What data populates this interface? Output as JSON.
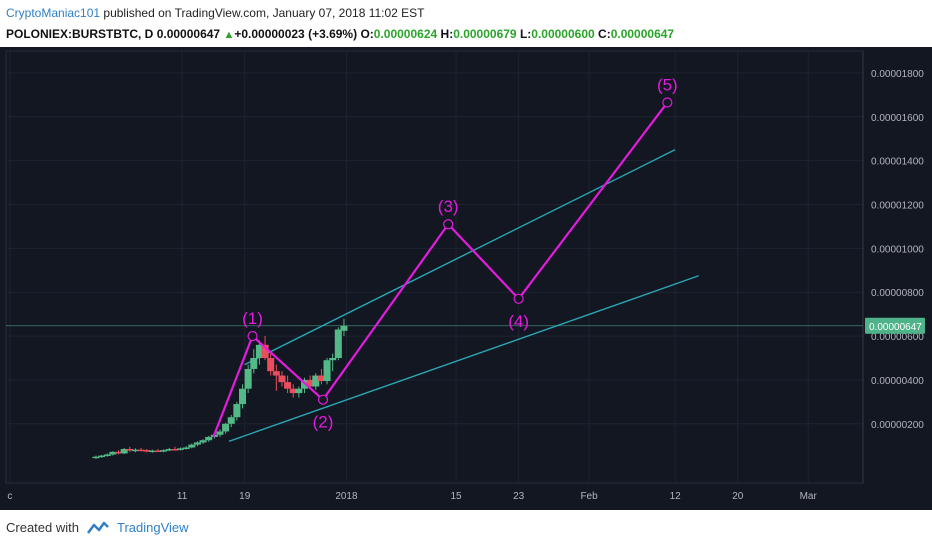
{
  "header": {
    "author": "CryptoManiac101",
    "published": "published on TradingView.com, January 07, 2018 11:02 EST",
    "symbol": "POLONIEX:BURSTBTC, D",
    "last": "0.00000647",
    "change": "+0.00000023 (+3.69%)",
    "o_label": "O:",
    "o_val": "0.00000624",
    "h_label": "H:",
    "h_val": "0.00000679",
    "l_label": "L:",
    "l_val": "0.00000600",
    "c_label": "C:",
    "c_val": "0.00000647"
  },
  "footer": {
    "created_with": "Created with",
    "brand": "TradingView"
  },
  "colors": {
    "background": "#131722",
    "wave": "#e21bdd",
    "channel": "#2aa6b3",
    "bull": "#53b987",
    "bear": "#eb4d5c",
    "price_badge": "#4fb389"
  },
  "chart_data": {
    "type": "candlestick",
    "x_ticks": [
      {
        "label": "c",
        "day": -11
      },
      {
        "label": "11",
        "day": 11
      },
      {
        "label": "19",
        "day": 19
      },
      {
        "label": "2018",
        "day": 32
      },
      {
        "label": "15",
        "day": 46
      },
      {
        "label": "23",
        "day": 54
      },
      {
        "label": "Feb",
        "day": 63
      },
      {
        "label": "12",
        "day": 74
      },
      {
        "label": "20",
        "day": 82
      },
      {
        "label": "Mar",
        "day": 91
      }
    ],
    "y_ticks": [
      {
        "label": "0.00000200",
        "value": 200
      },
      {
        "label": "0.00000400",
        "value": 400
      },
      {
        "label": "0.00000600",
        "value": 600
      },
      {
        "label": "0.00000800",
        "value": 800
      },
      {
        "label": "0.00001000",
        "value": 1000
      },
      {
        "label": "0.00001200",
        "value": 1200
      },
      {
        "label": "0.00001400",
        "value": 1400
      },
      {
        "label": "0.00001600",
        "value": 1600
      },
      {
        "label": "0.00001800",
        "value": 1800
      }
    ],
    "y_unit_note": "values in 1e-8 BTC",
    "current_price": {
      "label": "0.00000647",
      "value": 647
    },
    "candles": [
      {
        "o": 45,
        "h": 55,
        "l": 40,
        "c": 50
      },
      {
        "o": 50,
        "h": 58,
        "l": 45,
        "c": 55
      },
      {
        "o": 55,
        "h": 65,
        "l": 50,
        "c": 60
      },
      {
        "o": 60,
        "h": 75,
        "l": 55,
        "c": 72
      },
      {
        "o": 72,
        "h": 80,
        "l": 60,
        "c": 65
      },
      {
        "o": 65,
        "h": 90,
        "l": 62,
        "c": 85
      },
      {
        "o": 85,
        "h": 95,
        "l": 70,
        "c": 78
      },
      {
        "o": 78,
        "h": 88,
        "l": 70,
        "c": 82
      },
      {
        "o": 82,
        "h": 90,
        "l": 75,
        "c": 80
      },
      {
        "o": 80,
        "h": 85,
        "l": 70,
        "c": 74
      },
      {
        "o": 74,
        "h": 82,
        "l": 68,
        "c": 78
      },
      {
        "o": 78,
        "h": 85,
        "l": 72,
        "c": 76
      },
      {
        "o": 76,
        "h": 84,
        "l": 70,
        "c": 80
      },
      {
        "o": 80,
        "h": 90,
        "l": 75,
        "c": 85
      },
      {
        "o": 85,
        "h": 95,
        "l": 78,
        "c": 82
      },
      {
        "o": 82,
        "h": 92,
        "l": 78,
        "c": 88
      },
      {
        "o": 88,
        "h": 98,
        "l": 82,
        "c": 92
      },
      {
        "o": 92,
        "h": 110,
        "l": 88,
        "c": 105
      },
      {
        "o": 105,
        "h": 120,
        "l": 98,
        "c": 115
      },
      {
        "o": 115,
        "h": 130,
        "l": 108,
        "c": 125
      },
      {
        "o": 125,
        "h": 145,
        "l": 118,
        "c": 140
      },
      {
        "o": 140,
        "h": 160,
        "l": 132,
        "c": 150
      },
      {
        "o": 150,
        "h": 175,
        "l": 140,
        "c": 165
      },
      {
        "o": 165,
        "h": 205,
        "l": 155,
        "c": 200
      },
      {
        "o": 200,
        "h": 240,
        "l": 185,
        "c": 230
      },
      {
        "o": 230,
        "h": 300,
        "l": 215,
        "c": 290
      },
      {
        "o": 290,
        "h": 380,
        "l": 270,
        "c": 360
      },
      {
        "o": 360,
        "h": 470,
        "l": 340,
        "c": 450
      },
      {
        "o": 450,
        "h": 540,
        "l": 430,
        "c": 500
      },
      {
        "o": 500,
        "h": 580,
        "l": 470,
        "c": 560
      },
      {
        "o": 560,
        "h": 600,
        "l": 490,
        "c": 500
      },
      {
        "o": 500,
        "h": 530,
        "l": 420,
        "c": 440
      },
      {
        "o": 440,
        "h": 470,
        "l": 350,
        "c": 420
      },
      {
        "o": 420,
        "h": 440,
        "l": 370,
        "c": 390
      },
      {
        "o": 390,
        "h": 420,
        "l": 340,
        "c": 360
      },
      {
        "o": 360,
        "h": 380,
        "l": 320,
        "c": 340
      },
      {
        "o": 340,
        "h": 370,
        "l": 320,
        "c": 360
      },
      {
        "o": 360,
        "h": 410,
        "l": 340,
        "c": 400
      },
      {
        "o": 400,
        "h": 420,
        "l": 360,
        "c": 370
      },
      {
        "o": 370,
        "h": 430,
        "l": 355,
        "c": 420
      },
      {
        "o": 420,
        "h": 450,
        "l": 380,
        "c": 395
      },
      {
        "o": 395,
        "h": 500,
        "l": 380,
        "c": 490
      },
      {
        "o": 490,
        "h": 520,
        "l": 440,
        "c": 500
      },
      {
        "o": 500,
        "h": 640,
        "l": 490,
        "c": 630
      },
      {
        "o": 624,
        "h": 679,
        "l": 600,
        "c": 647
      }
    ],
    "first_candle_day": 0,
    "elliott_wave": [
      {
        "label": "(1)",
        "day": 20,
        "value": 600
      },
      {
        "label": "(2)",
        "day": 29,
        "value": 310
      },
      {
        "label": "(3)",
        "day": 45,
        "value": 1110
      },
      {
        "label": "(4)",
        "day": 54,
        "value": 770
      },
      {
        "label": "(5)",
        "day": 73,
        "value": 1665
      }
    ],
    "wave_start": {
      "day": 15,
      "value": 140
    },
    "channel_upper": [
      {
        "day": 19,
        "value": 470
      },
      {
        "day": 74,
        "value": 1450
      }
    ],
    "channel_lower": [
      {
        "day": 17,
        "value": 120
      },
      {
        "day": 77,
        "value": 875
      }
    ],
    "y_range": [
      -70,
      1900
    ],
    "x_range": [
      -11.5,
      98
    ]
  }
}
